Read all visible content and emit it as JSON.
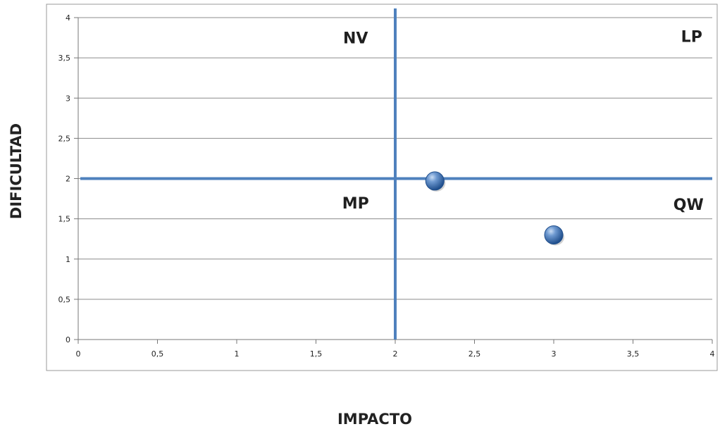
{
  "chart_data": {
    "type": "scatter",
    "title": "",
    "xlabel": "IMPACTO",
    "ylabel": "DIFICULTAD",
    "xlim": [
      0,
      4
    ],
    "ylim": [
      0,
      4
    ],
    "x_ticks": [
      "0",
      "0,5",
      "1",
      "1,5",
      "2",
      "2,5",
      "3",
      "3,5",
      "4"
    ],
    "y_ticks": [
      "0",
      "0,5",
      "1",
      "1,5",
      "2",
      "2,5",
      "3",
      "3,5",
      "4"
    ],
    "grid": "horizontal",
    "points": [
      {
        "x": 2.25,
        "y": 1.97
      },
      {
        "x": 3.0,
        "y": 1.3
      }
    ],
    "quadrant_lines": {
      "x": 2,
      "y": 2
    },
    "quadrant_labels": [
      {
        "text": "NV",
        "x": 1.75,
        "y": 3.75
      },
      {
        "text": "LP",
        "x": 3.87,
        "y": 3.77
      },
      {
        "text": "MP",
        "x": 1.75,
        "y": 1.7
      },
      {
        "text": "QW",
        "x": 3.85,
        "y": 1.68
      }
    ],
    "colors": {
      "quadrant_line": "#4f81bd",
      "marker": "#4f81bd",
      "marker_dark": "#1f4e8c",
      "grid": "#8c8c8c",
      "frame": "#9a9a9a"
    }
  }
}
